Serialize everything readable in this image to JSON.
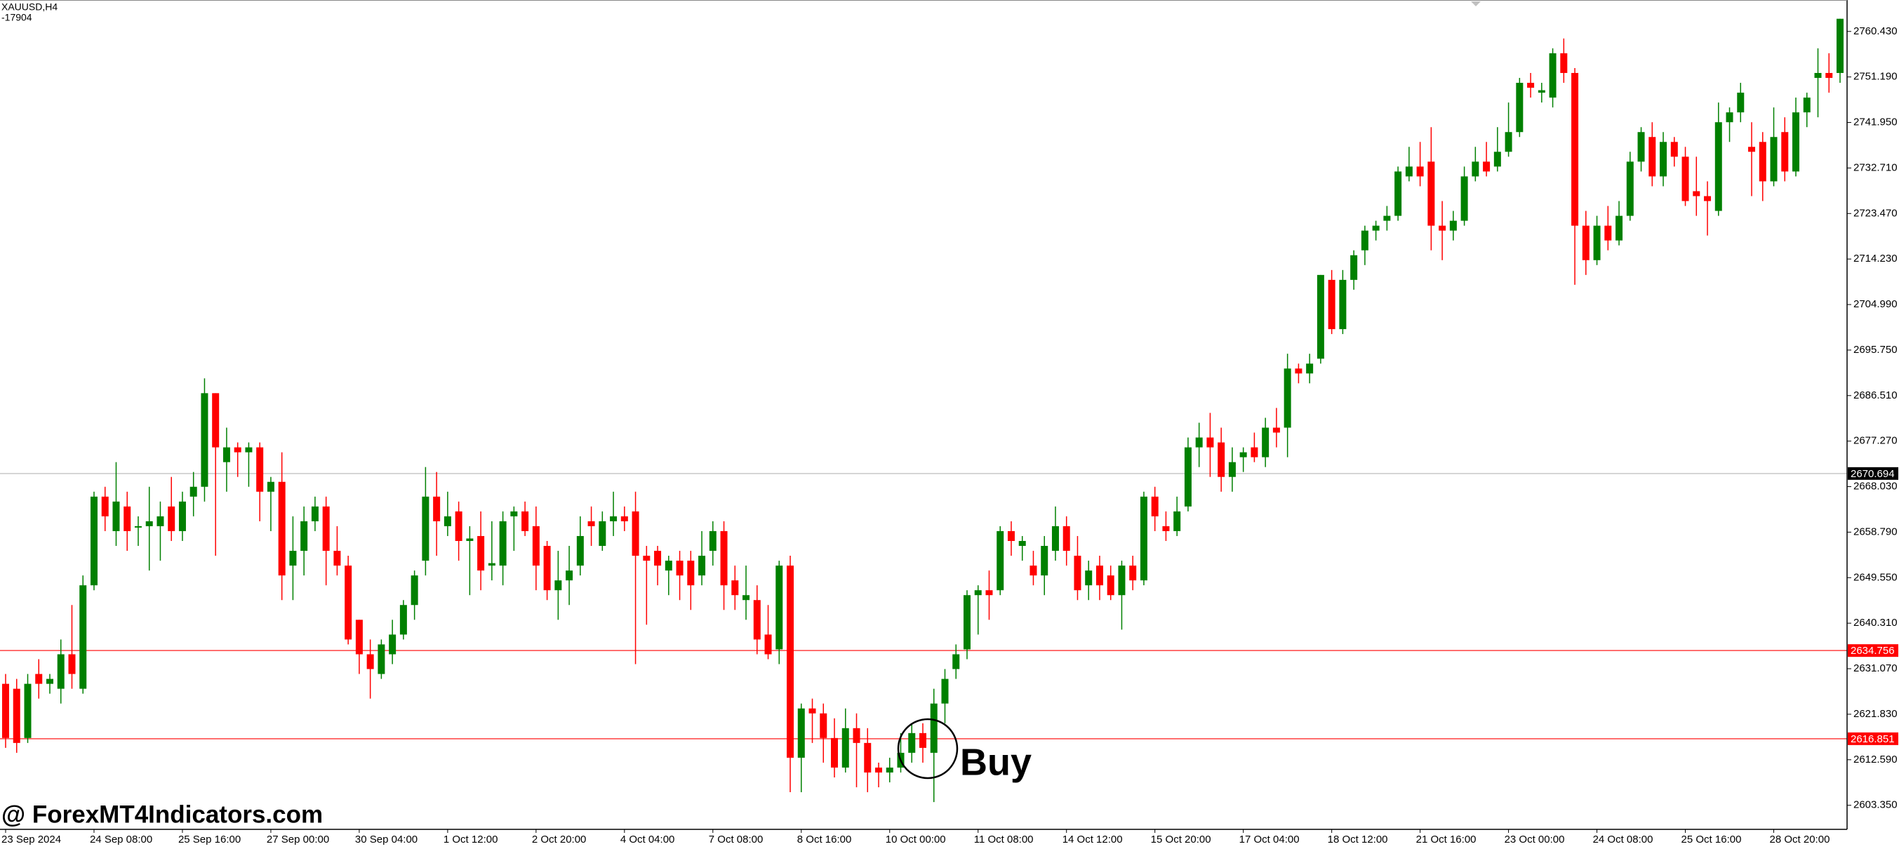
{
  "chart_data": {
    "type": "candlestick",
    "title": "XAUUSD,H4",
    "subtitle": "-17904",
    "watermark": "@ ForexMT4Indicators.com",
    "annotations": [
      {
        "text": "Buy"
      }
    ],
    "up_color": "#008000",
    "down_color": "#ff0000",
    "ylim": [
      2598.46,
      2766.81
    ],
    "yticks": [
      {
        "value": 2760.43,
        "label": "2760.430"
      },
      {
        "value": 2751.19,
        "label": "2751.190"
      },
      {
        "value": 2741.95,
        "label": "2741.950"
      },
      {
        "value": 2732.71,
        "label": "2732.710"
      },
      {
        "value": 2723.47,
        "label": "2723.470"
      },
      {
        "value": 2714.23,
        "label": "2714.230"
      },
      {
        "value": 2704.99,
        "label": "2704.990"
      },
      {
        "value": 2695.75,
        "label": "2695.750"
      },
      {
        "value": 2686.51,
        "label": "2686.510"
      },
      {
        "value": 2677.27,
        "label": "2677.270"
      },
      {
        "value": 2668.03,
        "label": "2668.030"
      },
      {
        "value": 2658.79,
        "label": "2658.790"
      },
      {
        "value": 2649.55,
        "label": "2649.550"
      },
      {
        "value": 2640.31,
        "label": "2640.310"
      },
      {
        "value": 2631.07,
        "label": "2631.070"
      },
      {
        "value": 2621.83,
        "label": "2621.830"
      },
      {
        "value": 2612.59,
        "label": "2612.590"
      },
      {
        "value": 2603.35,
        "label": "2603.350"
      }
    ],
    "hlines": [
      {
        "value": 2670.694,
        "color": "#c8c8c8",
        "label_color": "#000000"
      },
      {
        "value": 2634.756,
        "color": "#ff4040",
        "label_color": "#ff0000"
      },
      {
        "value": 2616.851,
        "color": "#ff4040",
        "label_color": "#ff0000"
      }
    ],
    "categories": [
      "23 Sep 2024",
      null,
      null,
      null,
      null,
      null,
      null,
      null,
      "24 Sep 08:00",
      null,
      null,
      null,
      null,
      null,
      null,
      null,
      "25 Sep 16:00",
      null,
      null,
      null,
      null,
      null,
      null,
      null,
      "27 Sep 00:00",
      null,
      null,
      null,
      null,
      null,
      null,
      null,
      "30 Sep 04:00",
      null,
      null,
      null,
      null,
      null,
      null,
      null,
      "1 Oct 12:00",
      null,
      null,
      null,
      null,
      null,
      null,
      null,
      "2 Oct 20:00",
      null,
      null,
      null,
      null,
      null,
      null,
      null,
      "4 Oct 04:00",
      null,
      null,
      null,
      null,
      null,
      null,
      null,
      "7 Oct 08:00",
      null,
      null,
      null,
      null,
      null,
      null,
      null,
      "8 Oct 16:00",
      null,
      null,
      null,
      null,
      null,
      null,
      null,
      "10 Oct 00:00",
      null,
      null,
      null,
      null,
      null,
      null,
      null,
      "11 Oct 08:00",
      null,
      null,
      null,
      null,
      null,
      null,
      null,
      "14 Oct 12:00",
      null,
      null,
      null,
      null,
      null,
      null,
      null,
      "15 Oct 20:00",
      null,
      null,
      null,
      null,
      null,
      null,
      null,
      "17 Oct 04:00",
      null,
      null,
      null,
      null,
      null,
      null,
      null,
      "18 Oct 12:00",
      null,
      null,
      null,
      null,
      null,
      null,
      null,
      "21 Oct 16:00",
      null,
      null,
      null,
      null,
      null,
      null,
      null,
      "23 Oct 00:00",
      null,
      null,
      null,
      null,
      null,
      null,
      null,
      "24 Oct 08:00",
      null,
      null,
      null,
      null,
      null,
      null,
      null,
      "25 Oct 16:00",
      null,
      null,
      null,
      null,
      null,
      null,
      null,
      "28 Oct 20:00",
      null,
      null,
      null,
      null,
      null,
      null
    ],
    "ohlc": [
      [
        2628,
        2630,
        2615,
        2617
      ],
      [
        2627,
        2629,
        2614,
        2616
      ],
      [
        2617,
        2630,
        2616,
        2628
      ],
      [
        2630,
        2633,
        2625,
        2628
      ],
      [
        2628,
        2630,
        2626,
        2629
      ],
      [
        2627,
        2637,
        2624,
        2634
      ],
      [
        2634,
        2644,
        2627,
        2630
      ],
      [
        2627,
        2650,
        2626,
        2648
      ],
      [
        2648,
        2667,
        2647,
        2666
      ],
      [
        2666,
        2668,
        2659,
        2662
      ],
      [
        2659,
        2673,
        2656,
        2665
      ],
      [
        2664,
        2667,
        2655,
        2659
      ],
      [
        2660,
        2662,
        2656,
        2660
      ],
      [
        2660,
        2668,
        2651,
        2661
      ],
      [
        2660,
        2665,
        2653,
        2662
      ],
      [
        2664,
        2670,
        2657,
        2659
      ],
      [
        2659,
        2667,
        2657,
        2665
      ],
      [
        2666,
        2671,
        2662,
        2668
      ],
      [
        2668,
        2690,
        2665,
        2687
      ],
      [
        2687,
        2687,
        2654,
        2676
      ],
      [
        2673,
        2680,
        2667,
        2676
      ],
      [
        2676,
        2677,
        2670,
        2675
      ],
      [
        2675,
        2677,
        2668,
        2676
      ],
      [
        2676,
        2677,
        2661,
        2667
      ],
      [
        2667,
        2670,
        2659,
        2669
      ],
      [
        2669,
        2675,
        2645,
        2650
      ],
      [
        2652,
        2662,
        2645,
        2655
      ],
      [
        2655,
        2664,
        2650,
        2661
      ],
      [
        2661,
        2666,
        2659,
        2664
      ],
      [
        2664,
        2666,
        2648,
        2655
      ],
      [
        2655,
        2660,
        2650,
        2652
      ],
      [
        2652,
        2654,
        2636,
        2637
      ],
      [
        2641,
        2641,
        2630,
        2634
      ],
      [
        2634,
        2637,
        2625,
        2631
      ],
      [
        2630,
        2637,
        2629,
        2636
      ],
      [
        2634,
        2641,
        2632,
        2638
      ],
      [
        2638,
        2645,
        2637,
        2644
      ],
      [
        2644,
        2651,
        2641,
        2650
      ],
      [
        2653,
        2672,
        2650,
        2666
      ],
      [
        2666,
        2671,
        2654,
        2661
      ],
      [
        2660,
        2667,
        2658,
        2662
      ],
      [
        2663,
        2665,
        2653,
        2657
      ],
      [
        2657,
        2660,
        2646,
        2657.5
      ],
      [
        2658,
        2663,
        2647,
        2651
      ],
      [
        2652,
        2661,
        2649,
        2652.5
      ],
      [
        2652,
        2663,
        2648,
        2661
      ],
      [
        2662,
        2664,
        2655,
        2663
      ],
      [
        2663,
        2665,
        2658,
        2659
      ],
      [
        2660,
        2664,
        2647,
        2652
      ],
      [
        2656,
        2657,
        2645,
        2647
      ],
      [
        2647,
        2655,
        2641,
        2649
      ],
      [
        2649,
        2656,
        2644,
        2651
      ],
      [
        2652,
        2662,
        2650,
        2658
      ],
      [
        2661,
        2664,
        2656,
        2660
      ],
      [
        2656,
        2663,
        2655,
        2661
      ],
      [
        2661,
        2667,
        2658,
        2662
      ],
      [
        2662,
        2664,
        2659,
        2661
      ],
      [
        2663,
        2667,
        2632,
        2654
      ],
      [
        2654,
        2656,
        2640,
        2653
      ],
      [
        2655,
        2656,
        2648,
        2652
      ],
      [
        2651,
        2654,
        2646,
        2653
      ],
      [
        2653,
        2655,
        2645,
        2650
      ],
      [
        2653,
        2655,
        2643,
        2648
      ],
      [
        2650,
        2659,
        2648,
        2654
      ],
      [
        2655,
        2661,
        2652,
        2659
      ],
      [
        2659,
        2661,
        2643,
        2648
      ],
      [
        2649,
        2652,
        2643,
        2646
      ],
      [
        2645,
        2652,
        2641,
        2646
      ],
      [
        2645,
        2648,
        2634,
        2637
      ],
      [
        2638,
        2644,
        2633,
        2634
      ],
      [
        2635,
        2653,
        2632,
        2652
      ],
      [
        2652,
        2654,
        2606,
        2613
      ],
      [
        2613,
        2624,
        2606,
        2623
      ],
      [
        2623,
        2625,
        2616,
        2622
      ],
      [
        2622,
        2624,
        2612,
        2617
      ],
      [
        2617,
        2621,
        2609,
        2611
      ],
      [
        2611,
        2623,
        2610,
        2619
      ],
      [
        2619,
        2622,
        2607,
        2616
      ],
      [
        2616,
        2619,
        2606,
        2610
      ],
      [
        2611,
        2612,
        2607,
        2610
      ],
      [
        2610,
        2613,
        2608,
        2611
      ],
      [
        2611,
        2618,
        2610,
        2614
      ],
      [
        2614,
        2620,
        2612,
        2618
      ],
      [
        2618,
        2620,
        2612,
        2615
      ],
      [
        2614,
        2627,
        2604,
        2624
      ],
      [
        2624,
        2631,
        2620,
        2629
      ],
      [
        2631,
        2636,
        2629,
        2634
      ],
      [
        2635,
        2647,
        2633,
        2646
      ],
      [
        2646,
        2648,
        2638,
        2647
      ],
      [
        2647,
        2651,
        2641,
        2646
      ],
      [
        2647,
        2660,
        2646,
        2659
      ],
      [
        2659,
        2661,
        2654,
        2657
      ],
      [
        2656,
        2658,
        2653,
        2657
      ],
      [
        2652,
        2655,
        2648,
        2650
      ],
      [
        2650,
        2658,
        2646,
        2656
      ],
      [
        2655,
        2664,
        2653,
        2660
      ],
      [
        2660,
        2662,
        2652,
        2655
      ],
      [
        2654,
        2658,
        2645,
        2647
      ],
      [
        2648,
        2653,
        2645,
        2651
      ],
      [
        2652,
        2654,
        2645,
        2648
      ],
      [
        2650,
        2652,
        2645,
        2646
      ],
      [
        2646,
        2653,
        2639,
        2652
      ],
      [
        2652,
        2654,
        2647,
        2649
      ],
      [
        2649,
        2667,
        2648,
        2666
      ],
      [
        2666,
        2668,
        2659,
        2662
      ],
      [
        2660,
        2663,
        2657,
        2659
      ],
      [
        2659,
        2666,
        2658,
        2663
      ],
      [
        2664,
        2678,
        2663,
        2676
      ],
      [
        2676,
        2681,
        2672,
        2678
      ],
      [
        2678,
        2683,
        2670,
        2676
      ],
      [
        2677,
        2680,
        2667,
        2670
      ],
      [
        2670,
        2676,
        2667,
        2673
      ],
      [
        2674,
        2676,
        2671,
        2675
      ],
      [
        2676,
        2679,
        2673,
        2674
      ],
      [
        2674,
        2682,
        2672,
        2680
      ],
      [
        2680,
        2684,
        2676,
        2679
      ],
      [
        2680,
        2695,
        2674,
        2692
      ],
      [
        2692,
        2693,
        2689,
        2691
      ],
      [
        2691,
        2695,
        2689,
        2693
      ],
      [
        2694,
        2711,
        2693,
        2711
      ],
      [
        2710,
        2712,
        2699,
        2700
      ],
      [
        2700,
        2712,
        2699,
        2710
      ],
      [
        2710,
        2716,
        2708,
        2715
      ],
      [
        2716,
        2721,
        2713,
        2720
      ],
      [
        2720,
        2722,
        2718,
        2721
      ],
      [
        2722,
        2725,
        2720,
        2723
      ],
      [
        2723,
        2733,
        2722,
        2732
      ],
      [
        2731,
        2737,
        2730,
        2733
      ],
      [
        2733,
        2738,
        2729,
        2731
      ],
      [
        2734,
        2741,
        2716,
        2721
      ],
      [
        2721,
        2726,
        2714,
        2720
      ],
      [
        2720,
        2724,
        2718,
        2722
      ],
      [
        2722,
        2733,
        2721,
        2731
      ],
      [
        2731,
        2737,
        2730,
        2734
      ],
      [
        2734,
        2738,
        2731,
        2732
      ],
      [
        2733,
        2741,
        2732,
        2736
      ],
      [
        2736,
        2746,
        2735,
        2740
      ],
      [
        2740,
        2751,
        2739,
        2750
      ],
      [
        2750,
        2752,
        2747,
        2749
      ],
      [
        2748,
        2750,
        2746,
        2748.5
      ],
      [
        2747,
        2757,
        2745,
        2756
      ],
      [
        2756,
        2759,
        2750,
        2752
      ],
      [
        2752,
        2753,
        2709,
        2721
      ],
      [
        2721,
        2724,
        2711,
        2714
      ],
      [
        2714,
        2723,
        2713,
        2721
      ],
      [
        2721,
        2725,
        2716,
        2718
      ],
      [
        2718,
        2726,
        2717,
        2723
      ],
      [
        2723,
        2736,
        2722,
        2734
      ],
      [
        2734,
        2741,
        2732,
        2740
      ],
      [
        2739,
        2742,
        2729,
        2731
      ],
      [
        2731,
        2740,
        2729,
        2738
      ],
      [
        2738,
        2739,
        2733,
        2735
      ],
      [
        2735,
        2737,
        2725,
        2726
      ],
      [
        2728,
        2735,
        2723,
        2727
      ],
      [
        2727,
        2730,
        2719,
        2726
      ],
      [
        2724,
        2746,
        2723,
        2742
      ],
      [
        2742,
        2745,
        2738,
        2744
      ],
      [
        2744,
        2750,
        2742,
        2748
      ],
      [
        2737,
        2742,
        2727,
        2736
      ],
      [
        2738,
        2740,
        2726,
        2730
      ],
      [
        2730,
        2745,
        2729,
        2739
      ],
      [
        2740,
        2743,
        2730,
        2732
      ],
      [
        2732,
        2747,
        2731,
        2744
      ],
      [
        2744,
        2748,
        2741,
        2747
      ],
      [
        2751,
        2757,
        2743,
        2752
      ],
      [
        2752,
        2756,
        2748,
        2751
      ],
      [
        2752,
        2763,
        2750,
        2763
      ]
    ]
  }
}
